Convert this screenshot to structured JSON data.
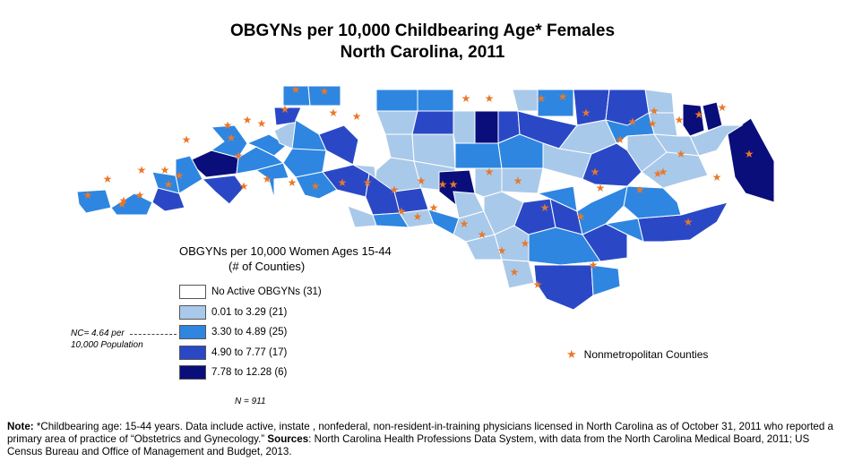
{
  "title_line1": "OBGYNs per 10,000 Childbearing Age* Females",
  "title_line2": "North Carolina, 2011",
  "colors": {
    "none": "#ffffff",
    "c1": "#a9c9ea",
    "c2": "#2e86e0",
    "c3": "#2a48c6",
    "c4": "#0a0e7a",
    "star": "#e8782a",
    "border": "#555555"
  },
  "legend": {
    "title": "OBGYNs per 10,000 Women Ages 15-44",
    "subtitle": "(# of Counties)",
    "items": [
      {
        "label": "No Active OBGYNs (31)",
        "color": "#ffffff"
      },
      {
        "label": "0.01 to 3.29 (21)",
        "color": "#a9c9ea"
      },
      {
        "label": "3.30 to 4.89 (25)",
        "color": "#2e86e0"
      },
      {
        "label": "4.90  to 7.77 (17)",
        "color": "#2a48c6"
      },
      {
        "label": "7.78  to 12.28 (6)",
        "color": "#0a0e7a"
      }
    ]
  },
  "nc_note_line1": "NC= 4.64 per",
  "nc_note_line2": "10,000 Population",
  "n_note": "N = 911",
  "nonmetro_label": "Nonmetropolitan Counties",
  "star_icon": "star-icon",
  "footnote": {
    "note_label": "Note:",
    "note_text": " *Childbearing age: 15-44 years. Data include active, instate , nonfederal, non-resident-in-training physicians licensed in North Carolina as of October 31, 2011 who reported a primary area of practice of “Obstetrics and Gynecology.” ",
    "sources_label": "Sources",
    "sources_text": ": North Carolina Health Professions Data System, with data from the North Carolina Medical Board, 2011; US Census Bureau and Office of Management and Budget, 2013."
  }
}
